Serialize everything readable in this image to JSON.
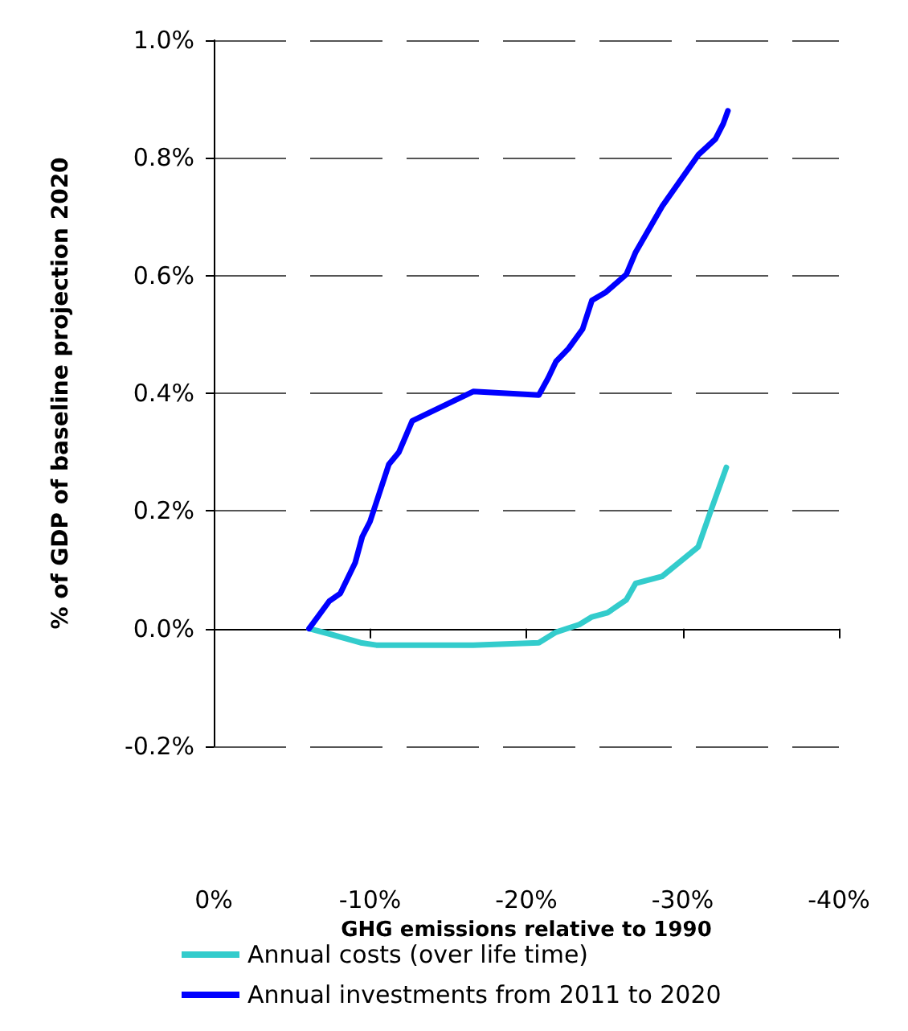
{
  "chart_data": {
    "type": "line",
    "xlabel": "GHG emissions relative to 1990",
    "ylabel": "% of GDP of baseline projection 2020",
    "xlim": [
      0,
      -40
    ],
    "xticks": [
      {
        "value": 0,
        "label": "0%"
      },
      {
        "value": -10,
        "label": "-10%"
      },
      {
        "value": -20,
        "label": "-20%"
      },
      {
        "value": -30,
        "label": "-30%"
      },
      {
        "value": -40,
        "label": "-40%"
      }
    ],
    "ylim": [
      -0.2,
      1.0
    ],
    "yticks": [
      {
        "value": -0.2,
        "label": "-0.2%"
      },
      {
        "value": 0,
        "label": "0.0%"
      },
      {
        "value": 0.2,
        "label": "0.2%"
      },
      {
        "value": 0.4,
        "label": "0.4%"
      },
      {
        "value": 0.6,
        "label": "0.6%"
      },
      {
        "value": 0.8,
        "label": "0.8%"
      },
      {
        "value": 1.0,
        "label": "1.0%"
      }
    ],
    "grid": "y",
    "legend": "bottom",
    "marker": "none",
    "line_style": "solid",
    "series": [
      {
        "name": "Annual costs (over life time)",
        "color": "#33cccc",
        "x": [
          -6.1,
          -7.4,
          -9.4,
          -10.4,
          -16.6,
          -20.8,
          -21.9,
          -23.4,
          -24.2,
          -25.2,
          -26.4,
          -27.0,
          -28.7,
          -31.0,
          -31.8,
          -32.8
        ],
        "values": [
          0,
          -0.009,
          -0.024,
          -0.028,
          -0.028,
          -0.024,
          -0.006,
          0.007,
          0.02,
          0.027,
          0.049,
          0.077,
          0.089,
          0.139,
          0.2,
          0.274
        ]
      },
      {
        "name": "Annual investments from 2011 to 2020",
        "color": "#0000ff",
        "x": [
          -6.1,
          -7.4,
          -8.1,
          -9.05,
          -9.5,
          -10.0,
          -11.2,
          -11.85,
          -12.7,
          -16.6,
          -20.8,
          -21.4,
          -21.9,
          -22.7,
          -23.6,
          -24.2,
          -25.1,
          -26.4,
          -27.0,
          -28.7,
          -31.0,
          -32.1,
          -32.6,
          -32.9
        ],
        "values": [
          0,
          0.047,
          0.06,
          0.112,
          0.156,
          0.182,
          0.279,
          0.3,
          0.353,
          0.403,
          0.397,
          0.426,
          0.454,
          0.476,
          0.509,
          0.558,
          0.572,
          0.602,
          0.64,
          0.718,
          0.805,
          0.832,
          0.858,
          0.88
        ]
      }
    ]
  }
}
